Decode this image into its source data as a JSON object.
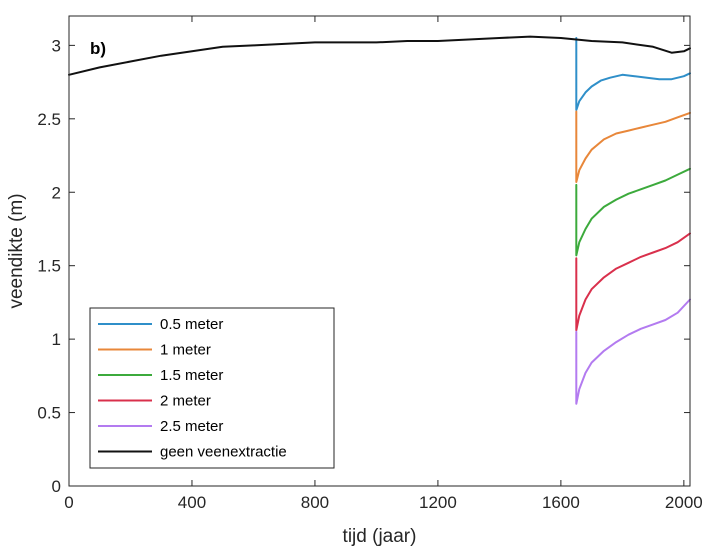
{
  "chart_data": {
    "type": "line",
    "panel_label": "b)",
    "xlabel": "tijd (jaar)",
    "ylabel": "veendikte (m)",
    "xlim": [
      0,
      2020
    ],
    "ylim": [
      0,
      3.2
    ],
    "xticks": [
      0,
      400,
      800,
      1200,
      1600,
      2000
    ],
    "xtick_labels": [
      "0",
      "400",
      "800",
      "1200",
      "1600",
      "2000"
    ],
    "yticks": [
      0,
      0.5,
      1,
      1.5,
      2,
      2.5,
      3
    ],
    "ytick_labels": [
      "0",
      "0.5",
      "1",
      "1.5",
      "2",
      "2.5",
      "3"
    ],
    "grid": false,
    "legend_position": "bottom-left",
    "series": [
      {
        "name": "0.5 meter",
        "color": "#2f8fc9",
        "x": [
          1650,
          1650,
          1660,
          1680,
          1700,
          1730,
          1760,
          1800,
          1840,
          1880,
          1920,
          1960,
          2000,
          2020
        ],
        "y": [
          3.05,
          2.56,
          2.62,
          2.68,
          2.72,
          2.76,
          2.78,
          2.8,
          2.79,
          2.78,
          2.77,
          2.77,
          2.79,
          2.81
        ]
      },
      {
        "name": "1 meter",
        "color": "#e8873a",
        "x": [
          1650,
          1650,
          1660,
          1680,
          1700,
          1740,
          1780,
          1820,
          1860,
          1900,
          1940,
          1980,
          2020
        ],
        "y": [
          2.55,
          2.07,
          2.15,
          2.23,
          2.29,
          2.36,
          2.4,
          2.42,
          2.44,
          2.46,
          2.48,
          2.51,
          2.54
        ]
      },
      {
        "name": "1.5 meter",
        "color": "#3caa3c",
        "x": [
          1650,
          1650,
          1660,
          1680,
          1700,
          1740,
          1780,
          1820,
          1860,
          1900,
          1940,
          1980,
          2020
        ],
        "y": [
          2.05,
          1.57,
          1.66,
          1.75,
          1.82,
          1.9,
          1.95,
          1.99,
          2.02,
          2.05,
          2.08,
          2.12,
          2.16
        ]
      },
      {
        "name": "2 meter",
        "color": "#d9304c",
        "x": [
          1650,
          1650,
          1660,
          1680,
          1700,
          1740,
          1780,
          1820,
          1860,
          1900,
          1940,
          1980,
          2020
        ],
        "y": [
          1.55,
          1.06,
          1.16,
          1.27,
          1.34,
          1.42,
          1.48,
          1.52,
          1.56,
          1.59,
          1.62,
          1.66,
          1.72
        ]
      },
      {
        "name": "2.5 meter",
        "color": "#b37bf0",
        "x": [
          1650,
          1650,
          1660,
          1680,
          1700,
          1740,
          1780,
          1820,
          1860,
          1900,
          1940,
          1980,
          2020
        ],
        "y": [
          1.05,
          0.56,
          0.66,
          0.77,
          0.84,
          0.92,
          0.98,
          1.03,
          1.07,
          1.1,
          1.13,
          1.18,
          1.27
        ]
      },
      {
        "name": "geen veenextractie",
        "color": "#111111",
        "x": [
          0,
          100,
          200,
          300,
          400,
          500,
          600,
          700,
          800,
          900,
          1000,
          1100,
          1200,
          1300,
          1400,
          1500,
          1600,
          1650,
          1700,
          1800,
          1900,
          1960,
          2000,
          2020
        ],
        "y": [
          2.8,
          2.85,
          2.89,
          2.93,
          2.96,
          2.99,
          3.0,
          3.01,
          3.02,
          3.02,
          3.02,
          3.03,
          3.03,
          3.04,
          3.05,
          3.06,
          3.05,
          3.04,
          3.03,
          3.02,
          2.99,
          2.95,
          2.96,
          2.98
        ]
      }
    ]
  }
}
